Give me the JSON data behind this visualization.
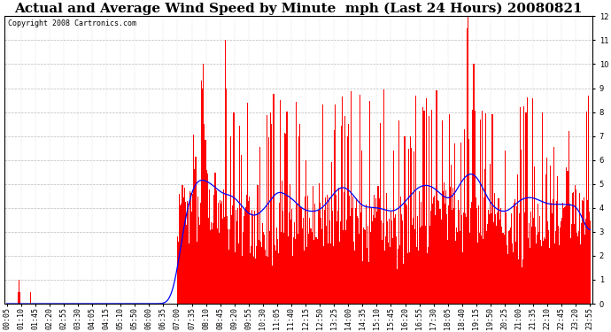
{
  "title": "Actual and Average Wind Speed by Minute  mph (Last 24 Hours) 20080821",
  "copyright": "Copyright 2008 Cartronics.com",
  "ylim": [
    0.0,
    12.0
  ],
  "yticks": [
    0.0,
    1.0,
    2.0,
    3.0,
    4.0,
    5.0,
    6.0,
    7.0,
    8.0,
    9.0,
    10.0,
    11.0,
    12.0
  ],
  "xtick_labels": [
    "00:05",
    "01:10",
    "01:45",
    "02:20",
    "02:55",
    "03:30",
    "04:05",
    "04:15",
    "05:10",
    "05:50",
    "06:00",
    "06:35",
    "07:00",
    "07:35",
    "08:10",
    "08:45",
    "09:20",
    "09:55",
    "10:30",
    "11:05",
    "11:40",
    "12:15",
    "12:50",
    "13:25",
    "14:00",
    "14:35",
    "15:10",
    "15:45",
    "16:20",
    "16:55",
    "17:30",
    "18:05",
    "18:40",
    "19:15",
    "19:50",
    "20:25",
    "21:00",
    "21:35",
    "22:10",
    "22:45",
    "23:20",
    "23:55"
  ],
  "bar_color": "#ff0000",
  "line_color": "#0000ff",
  "background_color": "#ffffff",
  "grid_color": "#bbbbbb",
  "title_fontsize": 11,
  "copyright_fontsize": 6,
  "tick_fontsize": 6,
  "figwidth": 6.9,
  "figheight": 3.75,
  "dpi": 100
}
